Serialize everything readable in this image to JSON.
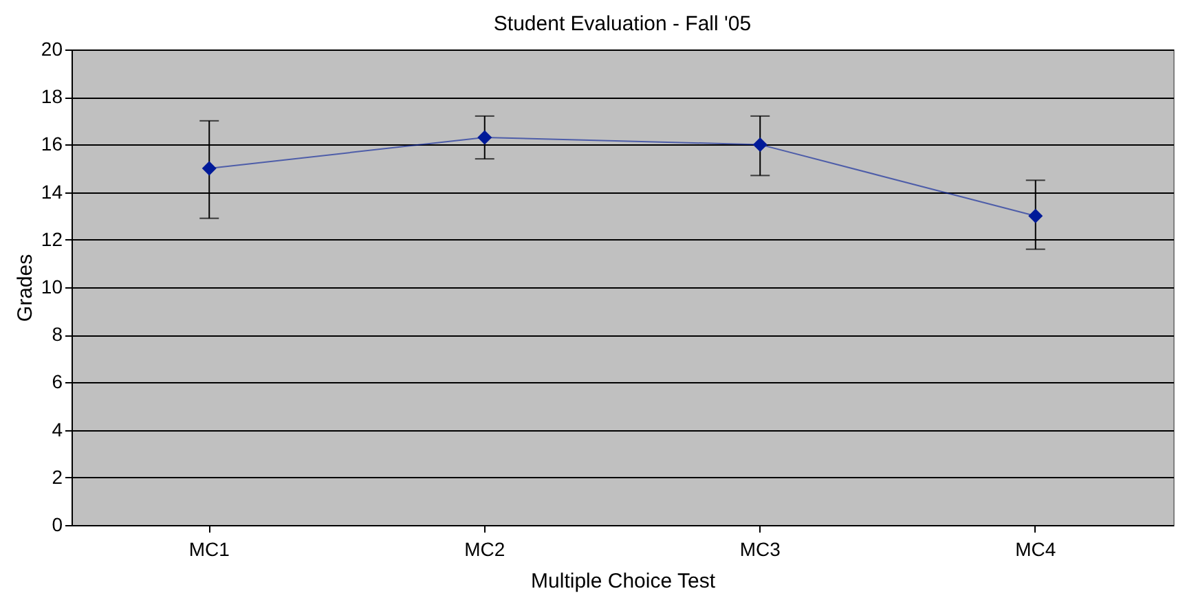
{
  "chart_data": {
    "type": "line",
    "title": "Student Evaluation - Fall '05",
    "xlabel": "Multiple Choice Test",
    "ylabel": "Grades",
    "categories": [
      "MC1",
      "MC2",
      "MC3",
      "MC4"
    ],
    "series": [
      {
        "color": "#001a99",
        "values": [
          15,
          16.3,
          16,
          13
        ],
        "errors": [
          [
            12.9,
            17
          ],
          [
            15.4,
            17.2
          ],
          [
            14.7,
            17.2
          ],
          [
            11.6,
            14.5
          ]
        ]
      }
    ],
    "ylim": [
      0,
      20
    ],
    "yticks": [
      0,
      2,
      4,
      6,
      8,
      10,
      12,
      14,
      16,
      18,
      20
    ],
    "grid": "y",
    "marker": "diamond",
    "line_style": "solid"
  }
}
